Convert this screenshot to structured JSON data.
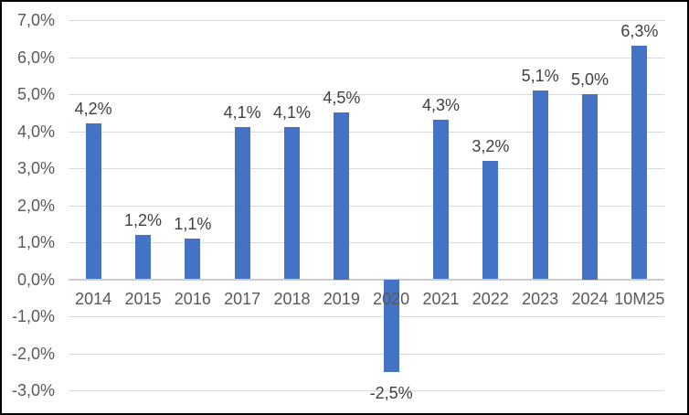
{
  "chart_data": {
    "type": "bar",
    "categories": [
      "2014",
      "2015",
      "2016",
      "2017",
      "2018",
      "2019",
      "2020",
      "2021",
      "2022",
      "2023",
      "2024",
      "10M25"
    ],
    "values": [
      4.2,
      1.2,
      1.1,
      4.1,
      4.1,
      4.5,
      -2.5,
      4.3,
      3.2,
      5.1,
      5.0,
      6.3
    ],
    "data_labels": [
      "4,2%",
      "1,2%",
      "1,1%",
      "4,1%",
      "4,1%",
      "4,5%",
      "-2,5%",
      "4,3%",
      "3,2%",
      "5,1%",
      "5,0%",
      "6,3%"
    ],
    "y_axis": {
      "tick_labels": [
        "7,0%",
        "6,0%",
        "5,0%",
        "4,0%",
        "3,0%",
        "2,0%",
        "1,0%",
        "0,0%",
        "-1,0%",
        "-2,0%",
        "-3,0%"
      ],
      "tick_values": [
        7,
        6,
        5,
        4,
        3,
        2,
        1,
        0,
        -1,
        -2,
        -3
      ],
      "range": [
        -3,
        7
      ]
    },
    "grid": true,
    "legend": "none",
    "colors": {
      "bar": "#4472C4",
      "gridline": "#D9D9D9",
      "zero_line": "#CCCCCC",
      "axis_text": "#595959",
      "data_label_text": "#404040",
      "background": "#FFFFFF",
      "border": "#000000"
    }
  }
}
